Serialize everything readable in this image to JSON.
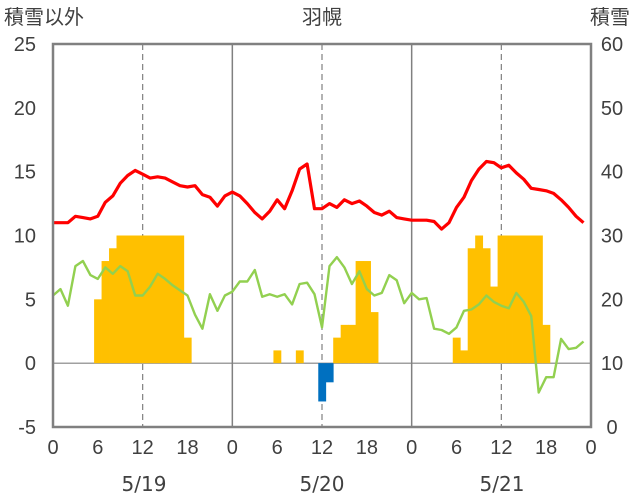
{
  "chart_data": {
    "type": "bar+line",
    "title": "羽幌",
    "left_axis_label": "積雪以外",
    "right_axis_label": "積雪",
    "left_ylim": [
      -5,
      25
    ],
    "left_yticks": [
      "-5",
      "0",
      "5",
      "10",
      "15",
      "20",
      "25"
    ],
    "right_ylim": [
      0,
      60
    ],
    "right_yticks": [
      "0",
      "10",
      "20",
      "30",
      "40",
      "50",
      "60"
    ],
    "xlim_hours": [
      0,
      72
    ],
    "xtick_labels": [
      "0",
      "6",
      "12",
      "18",
      "0",
      "6",
      "12",
      "18",
      "0",
      "6",
      "12",
      "18",
      "0"
    ],
    "date_labels": [
      "5/19",
      "5/20",
      "5/21"
    ],
    "grid": "dashed vertical at 12h each day, solid vertical at day boundaries",
    "colors": {
      "red_line": "#ff0000",
      "green_line": "#92d050",
      "bar_positive": "#ffc000",
      "bar_negative": "#0070c0",
      "frame": "#808080"
    },
    "series": [
      {
        "color": "red",
        "axis": "left",
        "x": [
          0,
          1,
          2,
          3,
          4,
          5,
          6,
          7,
          8,
          9,
          10,
          11,
          12,
          13,
          14,
          15,
          16,
          17,
          18,
          19,
          20,
          21,
          22,
          23,
          24,
          25,
          26,
          27,
          28,
          29,
          30,
          31,
          32,
          33,
          34,
          35,
          36,
          37,
          38,
          39,
          40,
          41,
          42,
          43,
          44,
          45,
          46,
          47,
          48,
          49,
          50,
          51,
          52,
          53,
          54,
          55,
          56,
          57,
          58,
          59,
          60,
          61,
          62,
          63,
          64,
          65,
          66,
          67,
          68,
          69,
          70,
          71
        ],
        "y": [
          11,
          11,
          11,
          11.5,
          11.4,
          11.3,
          11.5,
          12.6,
          13.1,
          14.1,
          14.7,
          15.1,
          14.8,
          14.5,
          14.6,
          14.5,
          14.2,
          13.9,
          13.8,
          13.9,
          13.2,
          13,
          12.3,
          13.1,
          13.4,
          13.1,
          12.5,
          11.8,
          11.3,
          11.9,
          12.8,
          12.1,
          13.5,
          15.2,
          15.6,
          12.1,
          12.1,
          12.5,
          12.2,
          12.8,
          12.5,
          12.7,
          12.3,
          11.8,
          11.6,
          11.9,
          11.4,
          11.3,
          11.2,
          11.2,
          11.2,
          11.1,
          10.5,
          11,
          12.2,
          13,
          14.3,
          15.2,
          15.8,
          15.7,
          15.3,
          15.5,
          14.9,
          14.4,
          13.7,
          13.6,
          13.5,
          13.3,
          12.8,
          12.2,
          11.5,
          11
        ]
      },
      {
        "color": "green",
        "axis": "left",
        "x": [
          0,
          1,
          2,
          3,
          4,
          5,
          6,
          7,
          8,
          9,
          10,
          11,
          12,
          13,
          14,
          15,
          16,
          17,
          18,
          19,
          20,
          21,
          22,
          23,
          24,
          25,
          26,
          27,
          28,
          29,
          30,
          31,
          32,
          33,
          34,
          35,
          36,
          37,
          38,
          39,
          40,
          41,
          42,
          43,
          44,
          45,
          46,
          47,
          48,
          49,
          50,
          51,
          52,
          53,
          54,
          55,
          56,
          57,
          58,
          59,
          60,
          61,
          62,
          63,
          64,
          65,
          66,
          67,
          68,
          69,
          70,
          71
        ],
        "y": [
          5.3,
          5.8,
          4.5,
          7.6,
          8,
          6.9,
          6.6,
          7.5,
          7,
          7.6,
          7.2,
          5.3,
          5.3,
          6,
          7,
          6.6,
          6.1,
          5.7,
          5.3,
          3.8,
          2.7,
          5.4,
          4.1,
          5.3,
          5.6,
          6.4,
          6.4,
          7.3,
          5.2,
          5.4,
          5.2,
          5.4,
          4.6,
          6.2,
          6.3,
          5.4,
          2.8,
          7.6,
          8.3,
          7.5,
          6.2,
          7.2,
          5.8,
          5.3,
          5.5,
          6.9,
          6.5,
          4.7,
          5.5,
          5,
          5.1,
          2.7,
          2.6,
          2.3,
          2.8,
          4.1,
          4.2,
          4.6,
          5.3,
          4.8,
          4.5,
          4.3,
          5.5,
          4.8,
          3.7,
          -2.3,
          -1.1,
          -1.1,
          1.9,
          1.1,
          1.2,
          1.7
        ]
      }
    ],
    "bars": {
      "axis": "left",
      "x_hours": [
        6,
        7,
        8,
        9,
        10,
        11,
        12,
        13,
        14,
        15,
        16,
        17,
        18,
        30,
        33,
        36,
        37,
        38,
        39,
        40,
        41,
        42,
        43,
        54,
        55,
        56,
        57,
        58,
        59,
        60,
        61,
        62,
        63,
        64,
        65,
        66
      ],
      "values": [
        5,
        8,
        9,
        10,
        10,
        10,
        10,
        10,
        10,
        10,
        10,
        10,
        2,
        1,
        1,
        -3,
        -1.5,
        2,
        3,
        3,
        8,
        8,
        4,
        2,
        1,
        9,
        10,
        9,
        6,
        10,
        10,
        10,
        10,
        10,
        10,
        3
      ]
    }
  }
}
